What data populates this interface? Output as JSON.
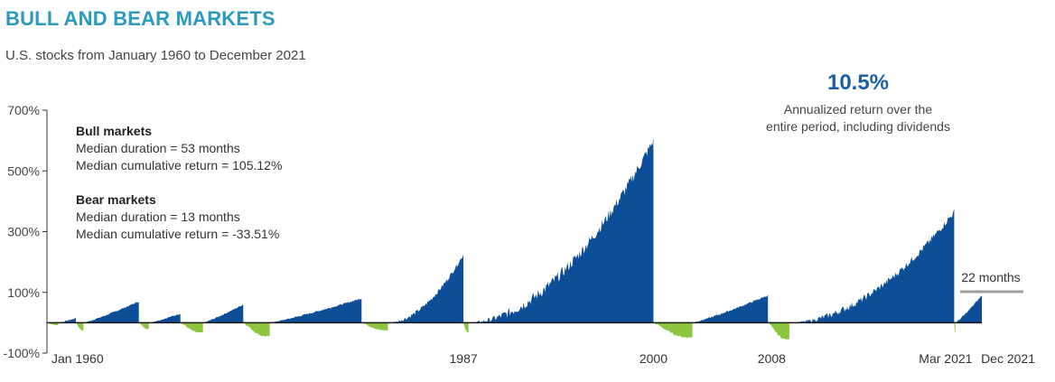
{
  "header": {
    "title": "BULL AND BEAR MARKETS",
    "subtitle": "U.S. stocks from January 1960 to December 2021"
  },
  "highlight": {
    "value": "10.5%",
    "caption_line1": "Annualized return over the",
    "caption_line2": "entire period, including dividends"
  },
  "notes": {
    "bull": {
      "heading": "Bull markets",
      "line1": "Median duration = 53 months",
      "line2": "Median cumulative return = 105.12%"
    },
    "bear": {
      "heading": "Bear markets",
      "line1": "Median duration = 13 months",
      "line2": "Median cumulative return = -33.51%"
    }
  },
  "colors": {
    "bull": "#0d4e98",
    "bear": "#8cc63f",
    "annotation": "#9e9e9e",
    "axis": "#333333"
  },
  "chart_data": {
    "type": "area",
    "title": "BULL AND BEAR MARKETS",
    "subtitle": "U.S. stocks from January 1960 to December 2021",
    "x_range": [
      "1960-01",
      "2021-12"
    ],
    "ylim": [
      -100,
      700
    ],
    "yticks": [
      {
        "value": 700,
        "label": "700%"
      },
      {
        "value": 500,
        "label": "500%"
      },
      {
        "value": 300,
        "label": "300%"
      },
      {
        "value": 100,
        "label": "100%"
      },
      {
        "value": -100,
        "label": "-100%"
      }
    ],
    "x_labels": [
      {
        "date": "1960-01",
        "label": "Jan 1960"
      },
      {
        "date": "1987-08",
        "label": "1987"
      },
      {
        "date": "2000-03",
        "label": "2000"
      },
      {
        "date": "2008-01",
        "label": "2008"
      },
      {
        "date": "2021-03",
        "label": "Mar 2021"
      },
      {
        "date": "2021-12",
        "label": "Dec 2021"
      }
    ],
    "series": [
      {
        "name": "Bull markets",
        "color": "#0d4e98"
      },
      {
        "name": "Bear markets",
        "color": "#8cc63f"
      }
    ],
    "markets": [
      {
        "type": "bear",
        "start": "1960-01",
        "end": "1960-10",
        "peak": -8
      },
      {
        "type": "bull",
        "start": "1960-10",
        "end": "1961-12",
        "peak": 15
      },
      {
        "type": "bear",
        "start": "1961-12",
        "end": "1962-06",
        "peak": -25
      },
      {
        "type": "bull",
        "start": "1962-06",
        "end": "1966-02",
        "peak": 70
      },
      {
        "type": "bear",
        "start": "1966-02",
        "end": "1966-10",
        "peak": -20
      },
      {
        "type": "bull",
        "start": "1966-10",
        "end": "1968-11",
        "peak": 30
      },
      {
        "type": "bear",
        "start": "1968-11",
        "end": "1970-05",
        "peak": -33
      },
      {
        "type": "bull",
        "start": "1970-05",
        "end": "1973-01",
        "peak": 60
      },
      {
        "type": "bear",
        "start": "1973-01",
        "end": "1974-10",
        "peak": -45
      },
      {
        "type": "bull",
        "start": "1974-10",
        "end": "1980-11",
        "peak": 80
      },
      {
        "type": "bear",
        "start": "1980-11",
        "end": "1982-08",
        "peak": -25
      },
      {
        "type": "bull",
        "start": "1982-08",
        "end": "1987-08",
        "peak": 225
      },
      {
        "type": "bear",
        "start": "1987-08",
        "end": "1987-12",
        "peak": -33
      },
      {
        "type": "bull",
        "start": "1987-12",
        "end": "2000-03",
        "peak": 600
      },
      {
        "type": "bear",
        "start": "2000-03",
        "end": "2002-10",
        "peak": -48
      },
      {
        "type": "bull",
        "start": "2002-10",
        "end": "2007-10",
        "peak": 90
      },
      {
        "type": "bear",
        "start": "2007-10",
        "end": "2009-03",
        "peak": -55
      },
      {
        "type": "bull",
        "start": "2009-03",
        "end": "2020-02",
        "peak": 365
      },
      {
        "type": "bear",
        "start": "2020-02",
        "end": "2020-03",
        "peak": -34
      },
      {
        "type": "bull",
        "start": "2020-03",
        "end": "2021-12",
        "peak": 90
      }
    ],
    "annotations": [
      {
        "label": "22 months"
      }
    ],
    "grid": false,
    "legend": "top-left"
  }
}
